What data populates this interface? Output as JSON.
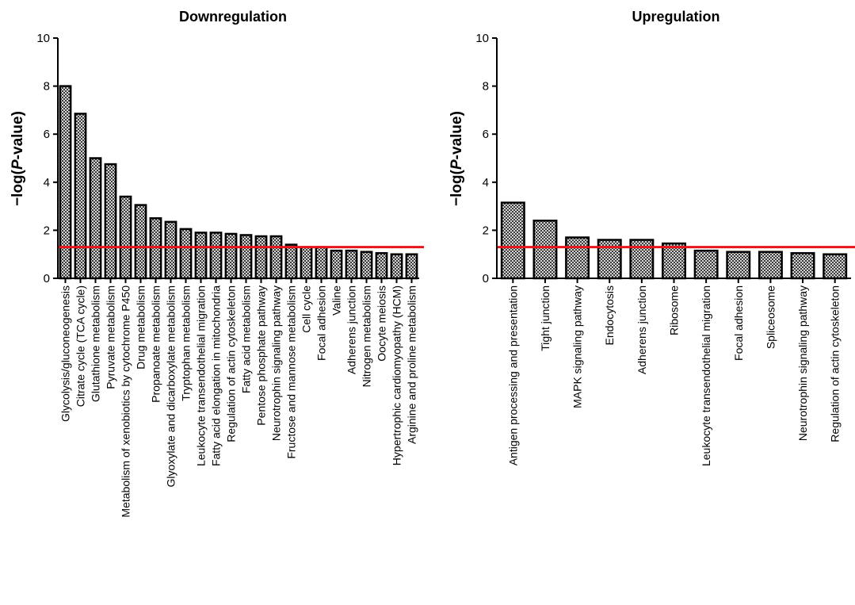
{
  "chart_data": [
    {
      "type": "bar",
      "title": "Downregulation",
      "xlabel": "",
      "ylabel": "−log(P-value)",
      "ylabel_parts": [
        "−log(",
        "P",
        "-value)"
      ],
      "ylim": [
        0,
        10
      ],
      "yticks": [
        "0",
        "2",
        "4",
        "6",
        "8",
        "10"
      ],
      "grid": false,
      "bar_fill": "checkered-gray",
      "threshold": {
        "value": 1.3,
        "color": "#e8141b"
      },
      "categories": [
        "Glycolysis/gluconeogenesis",
        "Citrate cycle (TCA cycle)",
        "Glutathione metabolism",
        "Pyruvate metabolism",
        "Metabolism of xenobiotics by cytochrome P450",
        "Drug metabolism",
        "Propanoate metabolism",
        "Glyoxylate and dicarboxylate metabolism",
        "Tryptophan metabolism",
        "Leukocyte transendothelial migration",
        "Fatty acid elongation in mitochondria",
        "Regulation of actin cytoskeleton",
        "Fatty acid metabolism",
        "Pentose phosphate pathway",
        "Neurotrophin signaling pathway",
        "Fructose and mannose metabolism",
        "Cell cycle",
        "Focal adhesion",
        "Valine",
        "Adherens junction",
        "Nitrogen metabolism",
        "Oocyte meiosis",
        "Hypertrophic cardiomyopathy (HCM)",
        "Arginine and proline metabolism"
      ],
      "values": [
        8.0,
        6.85,
        5.0,
        4.75,
        3.4,
        3.05,
        2.5,
        2.35,
        2.05,
        1.9,
        1.9,
        1.85,
        1.8,
        1.75,
        1.75,
        1.4,
        1.3,
        1.3,
        1.15,
        1.15,
        1.1,
        1.05,
        1.0,
        1.0
      ]
    },
    {
      "type": "bar",
      "title": "Upregulation",
      "xlabel": "",
      "ylabel": "−log(P-value)",
      "ylabel_parts": [
        "−log(",
        "P",
        "-value)"
      ],
      "ylim": [
        0,
        10
      ],
      "yticks": [
        "0",
        "2",
        "4",
        "6",
        "8",
        "10"
      ],
      "grid": false,
      "bar_fill": "checkered-gray",
      "threshold": {
        "value": 1.3,
        "color": "#e8141b"
      },
      "categories": [
        "Antigen processing and presentation",
        "Tight junction",
        "MAPK signaling pathway",
        "Endocytosis",
        "Adherens junction",
        "Ribosome",
        "Leukocyte transendothelial migration",
        "Focal adhesion",
        "Spliceosome",
        "Neurotrophin signaling pathway",
        "Regulation of actin cytoskeleton"
      ],
      "values": [
        3.15,
        2.4,
        1.7,
        1.6,
        1.6,
        1.45,
        1.15,
        1.1,
        1.1,
        1.05,
        1.0
      ]
    }
  ]
}
